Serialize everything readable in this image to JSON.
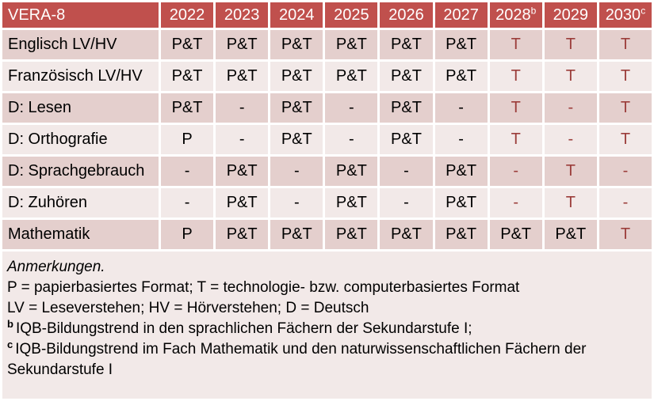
{
  "colors": {
    "header_bg": "#C0504D",
    "row_dark_bg": "#E4CFCD",
    "row_light_bg": "#F2E9E8",
    "accent_text": "#9B3D3A",
    "body_text": "#000000",
    "header_text": "#FFFFFF"
  },
  "table": {
    "header": [
      {
        "label": "VERA-8",
        "sup": ""
      },
      {
        "label": "2022",
        "sup": ""
      },
      {
        "label": "2023",
        "sup": ""
      },
      {
        "label": "2024",
        "sup": ""
      },
      {
        "label": "2025",
        "sup": ""
      },
      {
        "label": "2026",
        "sup": ""
      },
      {
        "label": "2027",
        "sup": ""
      },
      {
        "label": "2028",
        "sup": "b"
      },
      {
        "label": "2029",
        "sup": ""
      },
      {
        "label": "2030",
        "sup": "c"
      }
    ],
    "rows": [
      {
        "name": "Englisch LV/HV",
        "cells": [
          {
            "t": "P&T",
            "red": false
          },
          {
            "t": "P&T",
            "red": false
          },
          {
            "t": "P&T",
            "red": false
          },
          {
            "t": "P&T",
            "red": false
          },
          {
            "t": "P&T",
            "red": false
          },
          {
            "t": "P&T",
            "red": false
          },
          {
            "t": "T",
            "red": true
          },
          {
            "t": "T",
            "red": true
          },
          {
            "t": "T",
            "red": true
          }
        ]
      },
      {
        "name": "Französisch LV/HV",
        "cells": [
          {
            "t": "P&T",
            "red": false
          },
          {
            "t": "P&T",
            "red": false
          },
          {
            "t": "P&T",
            "red": false
          },
          {
            "t": "P&T",
            "red": false
          },
          {
            "t": "P&T",
            "red": false
          },
          {
            "t": "P&T",
            "red": false
          },
          {
            "t": "T",
            "red": true
          },
          {
            "t": "T",
            "red": true
          },
          {
            "t": "T",
            "red": true
          }
        ]
      },
      {
        "name": "D: Lesen",
        "cells": [
          {
            "t": "P&T",
            "red": false
          },
          {
            "t": "-",
            "red": false
          },
          {
            "t": "P&T",
            "red": false
          },
          {
            "t": "-",
            "red": false
          },
          {
            "t": "P&T",
            "red": false
          },
          {
            "t": "-",
            "red": false
          },
          {
            "t": "T",
            "red": true
          },
          {
            "t": "-",
            "red": true
          },
          {
            "t": "T",
            "red": true
          }
        ]
      },
      {
        "name": "D: Orthografie",
        "cells": [
          {
            "t": "P",
            "red": false
          },
          {
            "t": "-",
            "red": false
          },
          {
            "t": "P&T",
            "red": false
          },
          {
            "t": "-",
            "red": false
          },
          {
            "t": "P&T",
            "red": false
          },
          {
            "t": "-",
            "red": false
          },
          {
            "t": "T",
            "red": true
          },
          {
            "t": "-",
            "red": true
          },
          {
            "t": "T",
            "red": true
          }
        ]
      },
      {
        "name": "D: Sprachgebrauch",
        "cells": [
          {
            "t": "-",
            "red": false
          },
          {
            "t": "P&T",
            "red": false
          },
          {
            "t": "-",
            "red": false
          },
          {
            "t": "P&T",
            "red": false
          },
          {
            "t": "-",
            "red": false
          },
          {
            "t": "P&T",
            "red": false
          },
          {
            "t": "-",
            "red": true
          },
          {
            "t": "T",
            "red": true
          },
          {
            "t": "-",
            "red": true
          }
        ]
      },
      {
        "name": "D: Zuhören",
        "cells": [
          {
            "t": "-",
            "red": false
          },
          {
            "t": "P&T",
            "red": false
          },
          {
            "t": "-",
            "red": false
          },
          {
            "t": "P&T",
            "red": false
          },
          {
            "t": "-",
            "red": false
          },
          {
            "t": "P&T",
            "red": false
          },
          {
            "t": "-",
            "red": true
          },
          {
            "t": "T",
            "red": true
          },
          {
            "t": "-",
            "red": true
          }
        ]
      },
      {
        "name": "Mathematik",
        "cells": [
          {
            "t": "P",
            "red": false
          },
          {
            "t": "P&T",
            "red": false
          },
          {
            "t": "P&T",
            "red": false
          },
          {
            "t": "P&T",
            "red": false
          },
          {
            "t": "P&T",
            "red": false
          },
          {
            "t": "P&T",
            "red": false
          },
          {
            "t": "P&T",
            "red": false
          },
          {
            "t": "P&T",
            "red": false
          },
          {
            "t": "T",
            "red": true
          }
        ]
      }
    ]
  },
  "notes": {
    "title": "Anmerkungen.",
    "lines": [
      {
        "sup": "",
        "text": "P = papierbasiertes Format; T = technologie- bzw. computerbasiertes Format"
      },
      {
        "sup": "",
        "text": "LV = Leseverstehen; HV = Hörverstehen; D = Deutsch"
      },
      {
        "sup": "b",
        "text": "IQB-Bildungstrend in den sprachlichen Fächern der Sekundarstufe I;"
      },
      {
        "sup": "c",
        "text": "IQB-Bildungstrend im Fach Mathematik und den naturwissenschaftlichen Fächern der Sekundarstufe I"
      }
    ]
  }
}
